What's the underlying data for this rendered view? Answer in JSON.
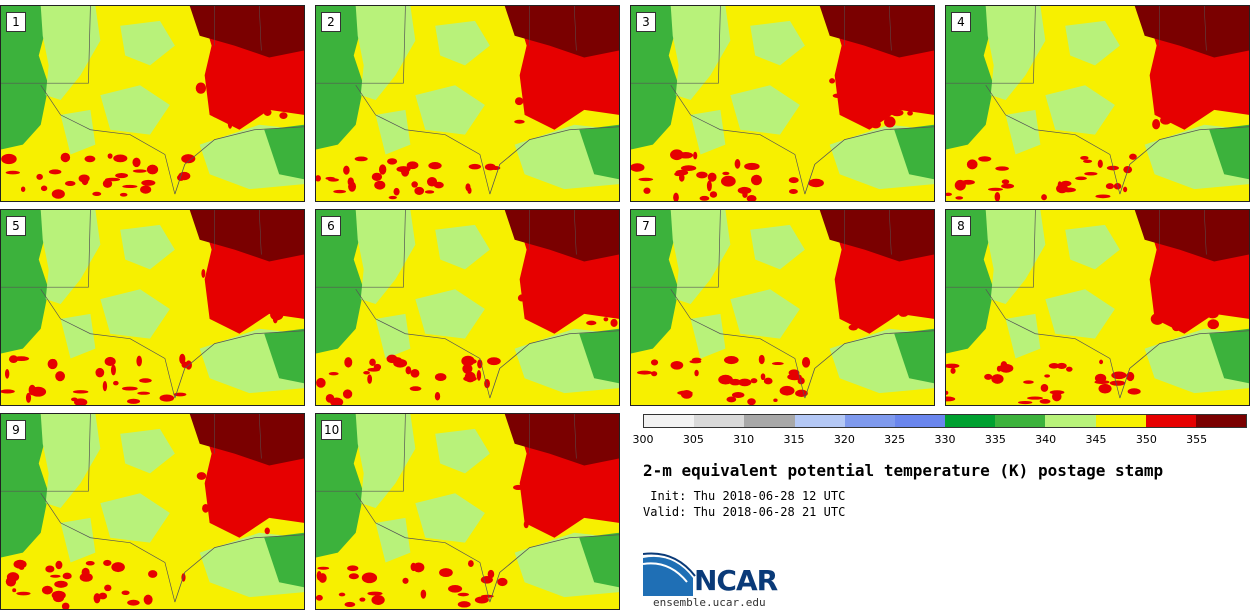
{
  "stamps": [
    {
      "label": "1"
    },
    {
      "label": "2"
    },
    {
      "label": "3"
    },
    {
      "label": "4"
    },
    {
      "label": "5"
    },
    {
      "label": "6"
    },
    {
      "label": "7"
    },
    {
      "label": "8"
    },
    {
      "label": "9"
    },
    {
      "label": "10"
    }
  ],
  "colorbar": {
    "min": 300,
    "max": 360,
    "step": 5,
    "ticks": [
      "300",
      "305",
      "310",
      "315",
      "320",
      "325",
      "330",
      "335",
      "340",
      "345",
      "350",
      "355"
    ],
    "colors": [
      "#f2f2f2",
      "#d9d9d9",
      "#a8a8a8",
      "#b4c8f5",
      "#7f9aee",
      "#6a86ee",
      "#00a030",
      "#3cb23c",
      "#b8f27a",
      "#f7f000",
      "#e60000",
      "#7a0000"
    ]
  },
  "title": "2-m equivalent potential temperature (K) postage stamp",
  "init": " Init: Thu 2018-06-28 12 UTC",
  "valid": "Valid: Thu 2018-06-28 21 UTC",
  "logo": {
    "text": "NCAR",
    "url": "ensemble.ucar.edu",
    "accent": "#1f6fb5"
  },
  "map_colors": {
    "dark_green": "#3cb23c",
    "light_green": "#b8f27a",
    "yellow": "#f7f000",
    "red": "#e60000",
    "dark_red": "#7a0000",
    "lines": "#555555"
  }
}
